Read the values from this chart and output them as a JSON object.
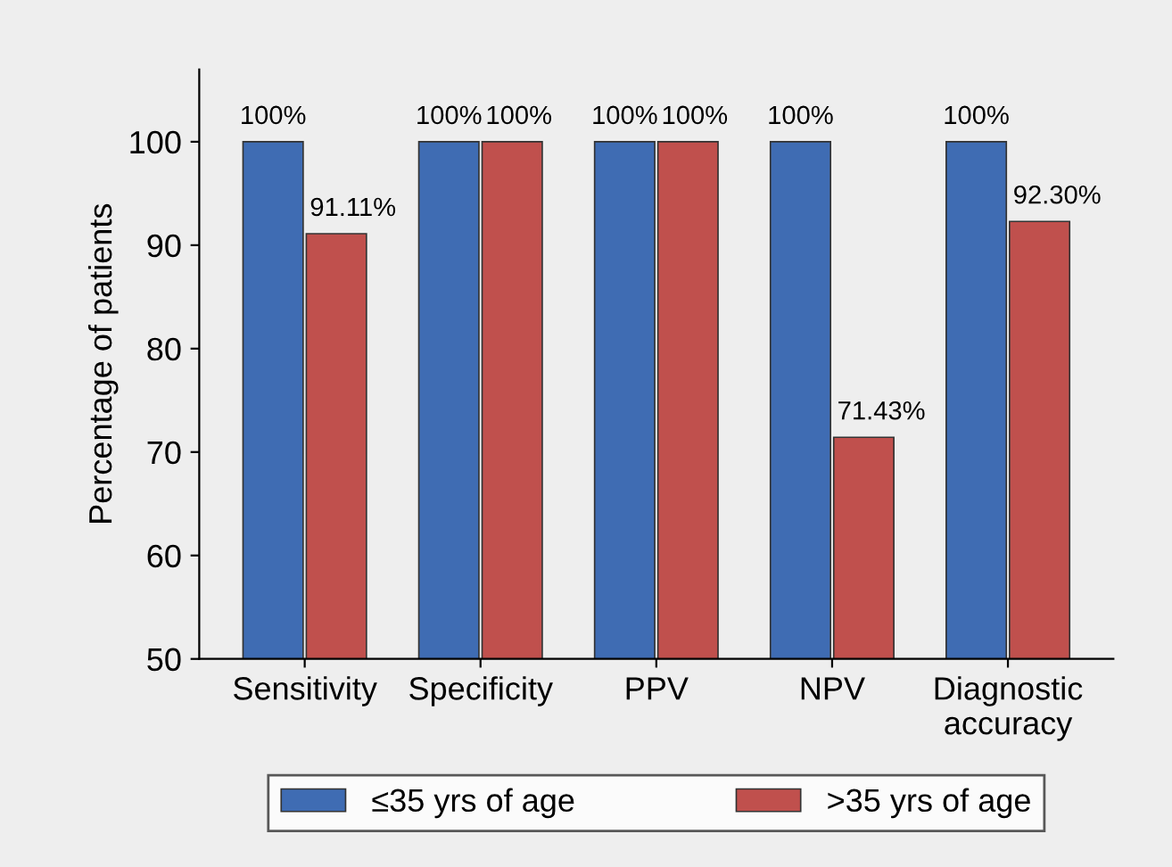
{
  "chart_data": {
    "type": "bar",
    "ylabel": "Percentage of patients",
    "categories": [
      "Sensitivity",
      "Specificity",
      "PPV",
      "NPV",
      "Diagnostic\naccuracy"
    ],
    "series": [
      {
        "name": "≤35 yrs of age",
        "color": "#3f6cb3",
        "values": [
          100,
          100,
          100,
          100,
          100
        ],
        "value_labels": [
          "100%",
          "100%",
          "100%",
          "100%",
          "100%"
        ]
      },
      {
        "name": ">35 yrs of age",
        "color": "#c0504d",
        "values": [
          91.11,
          100,
          100,
          71.43,
          92.3
        ],
        "value_labels": [
          "91.11%",
          "100%",
          "100%",
          "71.43%",
          "92.30%"
        ]
      }
    ],
    "ylim": [
      50,
      107
    ],
    "yticks": [
      50,
      60,
      70,
      80,
      90,
      100
    ],
    "grid": false,
    "legend": "bottom"
  }
}
